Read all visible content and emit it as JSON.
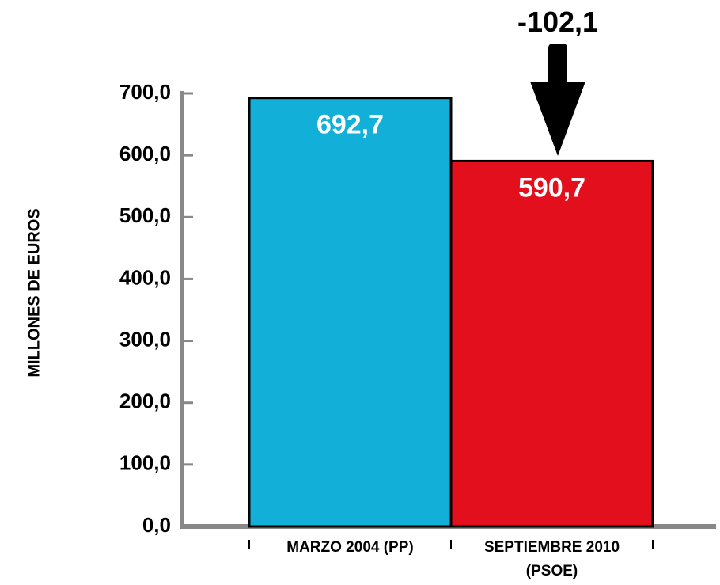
{
  "chart_data": {
    "type": "bar",
    "categories": [
      "MARZO 2004 (PP)",
      "SEPTIEMBRE 2010 (PSOE)"
    ],
    "category_lines": [
      [
        "MARZO 2004 (PP)"
      ],
      [
        "SEPTIEMBRE 2010",
        "(PSOE)"
      ]
    ],
    "values": [
      692.7,
      590.7
    ],
    "value_labels": [
      "692,7",
      "590,7"
    ],
    "colors": [
      "#12b0d8",
      "#e30f1c"
    ],
    "ylabel": "MILLONES DE EUROS",
    "ylim": [
      0,
      700
    ],
    "yticks": [
      0,
      100,
      200,
      300,
      400,
      500,
      600,
      700
    ],
    "ytick_labels": [
      "0,0",
      "100,0",
      "200,0",
      "300,0",
      "400,0",
      "500,0",
      "600,0",
      "700,0"
    ],
    "annotation": {
      "text": "-102,1",
      "arrow": "down",
      "target": "SEPTIEMBRE 2010 (PSOE)"
    },
    "axis_color": "#888888",
    "grid": false
  }
}
